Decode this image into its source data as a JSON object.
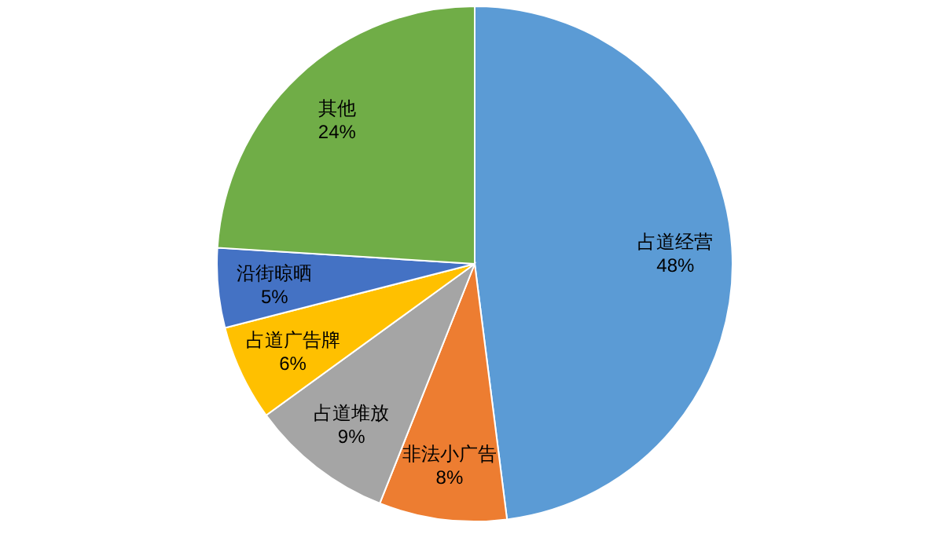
{
  "chart_data": {
    "type": "pie",
    "categories": [
      "占道经营",
      "非法小广告",
      "占道堆放",
      "占道广告牌",
      "沿街晾晒",
      "其他"
    ],
    "values": [
      48,
      8,
      9,
      6,
      5,
      24
    ],
    "value_labels": [
      "48%",
      "8%",
      "9%",
      "6%",
      "5%",
      "24%"
    ],
    "colors": [
      "#5b9bd5",
      "#ed7d31",
      "#a5a5a5",
      "#ffc000",
      "#4472c4",
      "#70ad47"
    ]
  }
}
